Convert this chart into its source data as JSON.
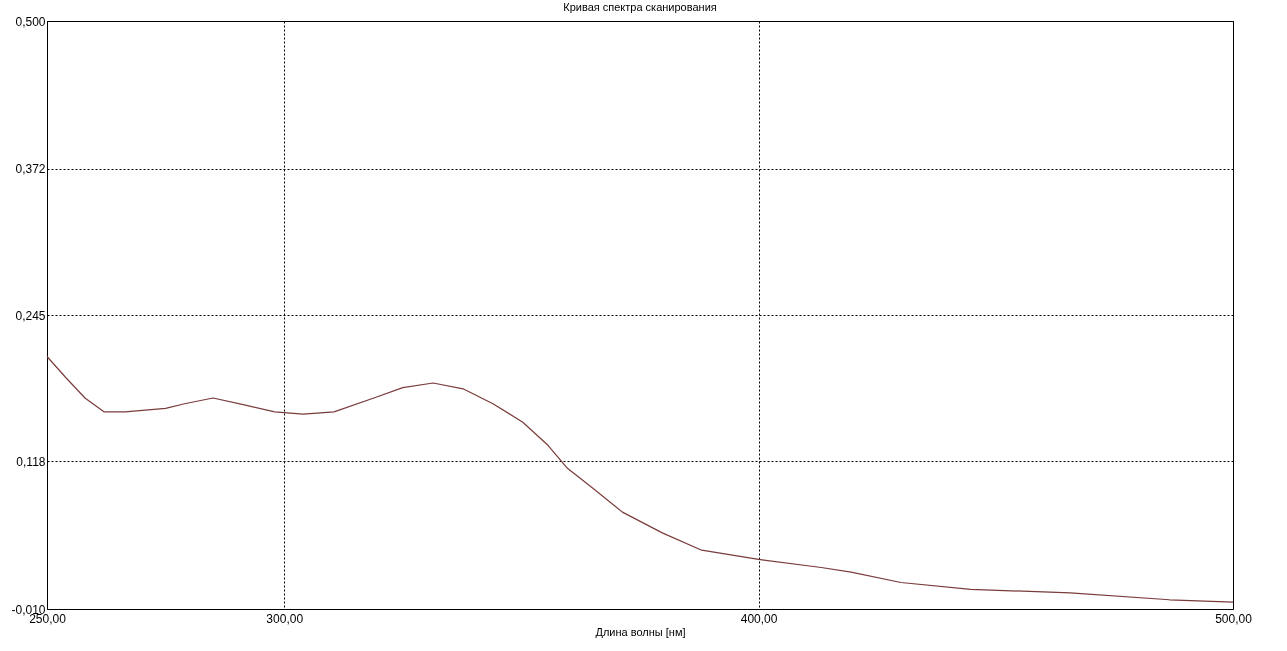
{
  "chart_data": {
    "type": "line",
    "title": "Кривая спектра сканирования",
    "xlabel": "Длина волны [нм]",
    "x": [
      250,
      253.9,
      258,
      262,
      266.5,
      275,
      279,
      285,
      291.6,
      298,
      304,
      310.5,
      318.9,
      325,
      331.4,
      337.7,
      344,
      350.3,
      355.6,
      359.7,
      365,
      371.3,
      379.7,
      388,
      400,
      413.2,
      419.5,
      430,
      444.7,
      465.7,
      486.6,
      500
    ],
    "series": [
      {
        "color": "#7a3b3b",
        "values": [
          0.209,
          0.191,
          0.173,
          0.161,
          0.161,
          0.164,
          0.168,
          0.173,
          0.167,
          0.161,
          0.159,
          0.161,
          0.173,
          0.182,
          0.186,
          0.181,
          0.168,
          0.152,
          0.132,
          0.112,
          0.095,
          0.074,
          0.056,
          0.041,
          0.033,
          0.026,
          0.022,
          0.013,
          0.007,
          0.004,
          -0.002,
          -0.004
        ]
      }
    ],
    "xlim": [
      250,
      500
    ],
    "xticks": [
      {
        "value": 250,
        "label": "250,00"
      },
      {
        "value": 300,
        "label": "300,00"
      },
      {
        "value": 400,
        "label": "400,00"
      },
      {
        "value": 500,
        "label": "500,00"
      }
    ],
    "ylim": [
      -0.01,
      0.5
    ],
    "yticks": [
      {
        "value": -0.01,
        "label": "-0,010"
      },
      {
        "value": 0.118,
        "label": "0,118"
      },
      {
        "value": 0.245,
        "label": "0,245"
      },
      {
        "value": 0.372,
        "label": "0,372"
      },
      {
        "value": 0.5,
        "label": "0,500"
      }
    ],
    "grid": true,
    "line_style": "solid",
    "marker": "none"
  }
}
